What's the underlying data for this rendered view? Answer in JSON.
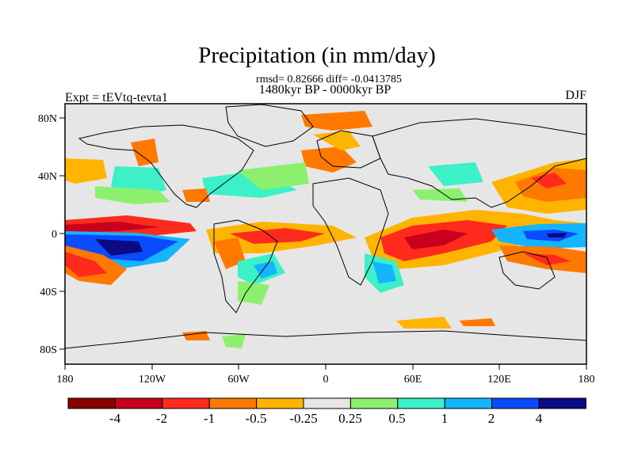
{
  "header": {
    "title": "Precipitation (in mm/day)",
    "stats": "rmsd= 0.82666 diff= -0.0413785",
    "period": "1480kyr BP - 0000kyr BP",
    "experiment": "Expt = tEVtq-tevta1",
    "season": "DJF"
  },
  "map": {
    "projection": "cylindrical-equidistant",
    "lon_ticks": [
      "180",
      "120W",
      "60W",
      "0",
      "60E",
      "120E",
      "180"
    ],
    "lat_ticks": [
      "80N",
      "40N",
      "0",
      "40S",
      "80S"
    ],
    "land_outline_color": "#000000",
    "background_color": "#e6e6e6"
  },
  "colorbar": {
    "colors": [
      "#8c0000",
      "#c8001e",
      "#ff2a1e",
      "#ff7800",
      "#ffb400",
      "#e6e6e6",
      "#8cf06e",
      "#3cf0c8",
      "#14b4ff",
      "#0a4bff",
      "#0a0a82"
    ],
    "labels": [
      "-4",
      "-2",
      "-1",
      "-0.5",
      "-0.25",
      "0.25",
      "0.5",
      "1",
      "2",
      "4"
    ]
  }
}
